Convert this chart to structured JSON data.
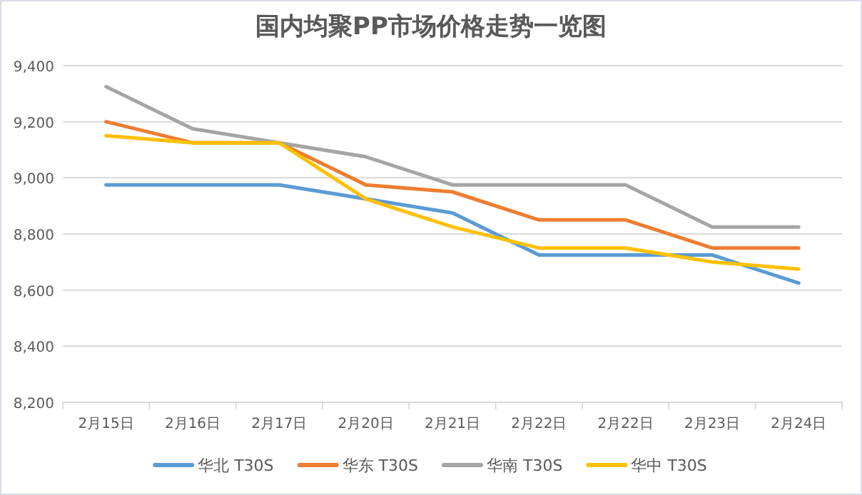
{
  "chart_data": {
    "type": "line",
    "title": "国内均聚PP市场价格走势一览图",
    "categories": [
      "2月15日",
      "2月16日",
      "2月17日",
      "2月20日",
      "2月21日",
      "2月22日",
      "2月22日",
      "2月23日",
      "2月24日"
    ],
    "series": [
      {
        "name": "华北 T30S",
        "color": "#5b9bd5",
        "values": [
          8975,
          8975,
          8975,
          8925,
          8875,
          8725,
          8725,
          8725,
          8625
        ]
      },
      {
        "name": "华东 T30S",
        "color": "#ed7d31",
        "values": [
          9200,
          9125,
          9125,
          8975,
          8950,
          8850,
          8850,
          8750,
          8750
        ]
      },
      {
        "name": "华南 T30S",
        "color": "#a5a5a5",
        "values": [
          9325,
          9175,
          9125,
          9075,
          8975,
          8975,
          8975,
          8825,
          8825
        ]
      },
      {
        "name": "华中 T30S",
        "color": "#ffc000",
        "values": [
          9150,
          9125,
          9125,
          8925,
          8825,
          8750,
          8750,
          8700,
          8675
        ]
      }
    ],
    "ylim": [
      8200,
      9400
    ],
    "yticks": [
      {
        "value": 8200,
        "label": "8,200"
      },
      {
        "value": 8400,
        "label": "8,400"
      },
      {
        "value": 8600,
        "label": "8,600"
      },
      {
        "value": 8800,
        "label": "8,800"
      },
      {
        "value": 9000,
        "label": "9,000"
      },
      {
        "value": 9200,
        "label": "9,200"
      },
      {
        "value": 9400,
        "label": "9,400"
      }
    ],
    "grid": "y",
    "legend": "bottom",
    "marker": "none",
    "line_style": "solid"
  }
}
